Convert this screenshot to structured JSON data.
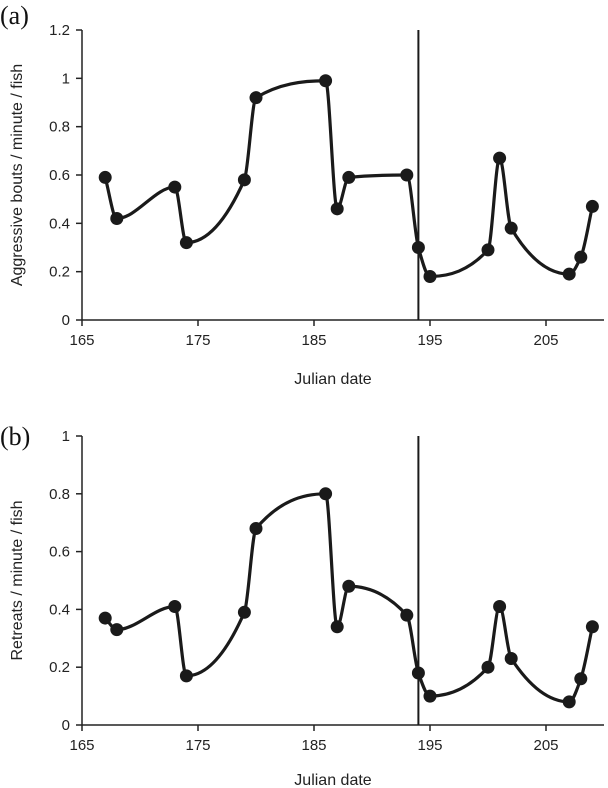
{
  "chart_data": [
    {
      "type": "line",
      "panel_label": "(a)",
      "xlabel": "Julian date",
      "ylabel": "Aggressive bouts / minute / fish",
      "xlim": [
        165,
        210
      ],
      "ylim": [
        0,
        1.2
      ],
      "xticks": [
        165,
        175,
        185,
        195,
        205
      ],
      "yticks": [
        0,
        0.2,
        0.4,
        0.6,
        0.8,
        1,
        1.2
      ],
      "ytick_labels": [
        "0",
        "0.2",
        "0.4",
        "0.6",
        "0.8",
        "1",
        "1.2"
      ],
      "vertical_line_x": 194,
      "series": [
        {
          "x": [
            167,
            168,
            173,
            174,
            179,
            180,
            186,
            187,
            188,
            193,
            194,
            195,
            200,
            201,
            202,
            207,
            208,
            209
          ],
          "values": [
            0.59,
            0.42,
            0.55,
            0.32,
            0.58,
            0.92,
            0.99,
            0.46,
            0.59,
            0.6,
            0.3,
            0.18,
            0.29,
            0.67,
            0.38,
            0.19,
            0.26,
            0.47
          ]
        }
      ],
      "grid": false
    },
    {
      "type": "line",
      "panel_label": "(b)",
      "xlabel": "Julian date",
      "ylabel": "Retreats / minute / fish",
      "xlim": [
        165,
        210
      ],
      "ylim": [
        0,
        1
      ],
      "xticks": [
        165,
        175,
        185,
        195,
        205
      ],
      "yticks": [
        0,
        0.2,
        0.4,
        0.6,
        0.8,
        1
      ],
      "ytick_labels": [
        "0",
        "0.2",
        "0.4",
        "0.6",
        "0.8",
        "1"
      ],
      "vertical_line_x": 194,
      "series": [
        {
          "x": [
            167,
            168,
            173,
            174,
            179,
            180,
            186,
            187,
            188,
            193,
            194,
            195,
            200,
            201,
            202,
            207,
            208,
            209
          ],
          "values": [
            0.37,
            0.33,
            0.41,
            0.17,
            0.39,
            0.68,
            0.8,
            0.34,
            0.48,
            0.38,
            0.18,
            0.1,
            0.2,
            0.41,
            0.23,
            0.08,
            0.16,
            0.34
          ]
        }
      ],
      "grid": false
    }
  ]
}
